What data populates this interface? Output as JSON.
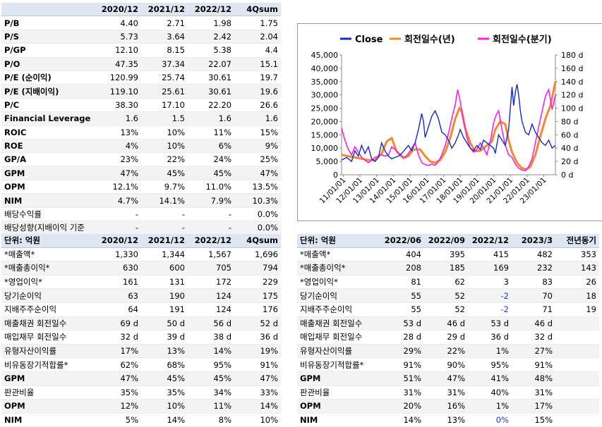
{
  "table1": {
    "headers": [
      "",
      "2020/12",
      "2021/12",
      "2022/12",
      "4Qsum"
    ],
    "rows": [
      {
        "label": "P/B",
        "values": [
          "4.40",
          "2.71",
          "1.98",
          "1.75"
        ]
      },
      {
        "label": "P/S",
        "values": [
          "5.73",
          "3.64",
          "2.42",
          "2.04"
        ]
      },
      {
        "label": "P/GP",
        "values": [
          "12.10",
          "8.15",
          "5.38",
          "4.4"
        ]
      },
      {
        "label": "P/O",
        "values": [
          "47.35",
          "37.34",
          "22.07",
          "15.1"
        ]
      },
      {
        "label": "P/E (순이익)",
        "values": [
          "120.99",
          "25.74",
          "30.61",
          "19.7"
        ]
      },
      {
        "label": "P/E (지배이익)",
        "values": [
          "119.10",
          "25.61",
          "30.61",
          "19.6"
        ]
      },
      {
        "label": "P/C",
        "values": [
          "38.30",
          "17.10",
          "22.20",
          "26.6"
        ]
      },
      {
        "label": "Financial Leverage",
        "values": [
          "1.6",
          "1.5",
          "1.6",
          "1.6"
        ]
      },
      {
        "label": "ROIC",
        "values": [
          "13%",
          "10%",
          "11%",
          "15%"
        ]
      },
      {
        "label": "ROE",
        "values": [
          "4%",
          "10%",
          "6%",
          "9%"
        ]
      },
      {
        "label": "GP/A",
        "values": [
          "23%",
          "22%",
          "24%",
          "25%"
        ]
      },
      {
        "label": "GPM",
        "values": [
          "47%",
          "45%",
          "45%",
          "47%"
        ]
      },
      {
        "label": "OPM",
        "values": [
          "12.1%",
          "9.7%",
          "11.0%",
          "13.5%"
        ]
      },
      {
        "label": "NIM",
        "values": [
          "4.7%",
          "14.1%",
          "7.9%",
          "10.3%"
        ]
      },
      {
        "label": "배당수익률",
        "values": [
          "-",
          "-",
          "-",
          "0.0%"
        ]
      },
      {
        "label": "배당성향(지배이익 기준",
        "values": [
          "-",
          "-",
          "-",
          "0.0%"
        ]
      }
    ]
  },
  "table2": {
    "headers": [
      "단위: 억원",
      "2020/12",
      "2021/12",
      "2022/12",
      "4Qsum"
    ],
    "rows": [
      {
        "label": "*매출액*",
        "values": [
          "1,330",
          "1,344",
          "1,567",
          "1,696"
        ]
      },
      {
        "label": "*매출총이익*",
        "values": [
          "630",
          "600",
          "705",
          "794"
        ]
      },
      {
        "label": "*영업이익*",
        "values": [
          "161",
          "131",
          "172",
          "229"
        ]
      },
      {
        "label": "당기순이익",
        "values": [
          "63",
          "190",
          "124",
          "175"
        ]
      },
      {
        "label": "지배주주순이익",
        "values": [
          "64",
          "191",
          "124",
          "176"
        ]
      },
      {
        "label": "매출채권 회전일수",
        "values": [
          "69 d",
          "50 d",
          "56 d",
          "52 d"
        ]
      },
      {
        "label": "매입채무 회전일수",
        "values": [
          "32 d",
          "39 d",
          "38 d",
          "36 d"
        ]
      },
      {
        "label": "유형자산이익률",
        "values": [
          "17%",
          "13%",
          "14%",
          "19%"
        ]
      },
      {
        "label": "비유동장기적합률*",
        "values": [
          "62%",
          "68%",
          "95%",
          "91%"
        ]
      },
      {
        "label": "GPM",
        "values": [
          "47%",
          "45%",
          "45%",
          "47%"
        ]
      },
      {
        "label": "판관비율",
        "values": [
          "35%",
          "35%",
          "34%",
          "33%"
        ]
      },
      {
        "label": "OPM",
        "values": [
          "12%",
          "10%",
          "11%",
          "14%"
        ]
      },
      {
        "label": "NIM",
        "values": [
          "5%",
          "14%",
          "8%",
          "10%"
        ]
      }
    ]
  },
  "table3": {
    "headers": [
      "단위: 억원",
      "2022/06",
      "2022/09",
      "2022/12",
      "2023/3",
      "전년동기"
    ],
    "rows": [
      {
        "label": "*매출액*",
        "values": [
          "404",
          "395",
          "415",
          "482",
          "353"
        ]
      },
      {
        "label": "*매출총이익*",
        "values": [
          "208",
          "185",
          "169",
          "232",
          "143"
        ]
      },
      {
        "label": "*영업이익*",
        "values": [
          "81",
          "62",
          "3",
          "83",
          "26"
        ]
      },
      {
        "label": "당기순이익",
        "values": [
          "55",
          "52",
          "-2",
          "70",
          "18"
        ]
      },
      {
        "label": "지배주주순이익",
        "values": [
          "55",
          "52",
          "-2",
          "71",
          "19"
        ]
      },
      {
        "label": "매출채권 회전일수",
        "values": [
          "53 d",
          "46 d",
          "53 d",
          "46 d",
          ""
        ]
      },
      {
        "label": "매입채무 회전일수",
        "values": [
          "28 d",
          "29 d",
          "36 d",
          "32 d",
          ""
        ]
      },
      {
        "label": "유형자산이익률",
        "values": [
          "29%",
          "22%",
          "1%",
          "27%",
          ""
        ]
      },
      {
        "label": "비유동장기적합률*",
        "values": [
          "91%",
          "90%",
          "95%",
          "91%",
          ""
        ]
      },
      {
        "label": "GPM",
        "values": [
          "51%",
          "47%",
          "41%",
          "48%",
          ""
        ]
      },
      {
        "label": "판관비율",
        "values": [
          "31%",
          "31%",
          "40%",
          "31%",
          ""
        ]
      },
      {
        "label": "OPM",
        "values": [
          "20%",
          "16%",
          "1%",
          "17%",
          ""
        ]
      },
      {
        "label": "NIM",
        "values": [
          "14%",
          "13%",
          "0%",
          "15%",
          ""
        ]
      }
    ]
  },
  "chart_data": {
    "type": "line",
    "legend": [
      "Close",
      "회전일수(년)",
      "회전일수(분기)"
    ],
    "legend_position": "top",
    "colors": {
      "close": "#1428d6",
      "annual": "#f08a2c",
      "quarterly": "#ff20e8"
    },
    "y_left": {
      "min": 0,
      "max": 45000,
      "ticks": [
        "0",
        "5,000",
        "10,000",
        "15,000",
        "20,000",
        "25,000",
        "30,000",
        "35,000",
        "40,000",
        "45,000"
      ]
    },
    "y_right": {
      "min": 0,
      "max": 180,
      "ticks": [
        "0 d",
        "20 d",
        "40 d",
        "60 d",
        "80 d",
        "100 d",
        "120 d",
        "140 d",
        "160 d",
        "180 d"
      ]
    },
    "x_ticks": [
      "11/01/01",
      "12/01/01",
      "13/01/01",
      "14/01/01",
      "15/01/01",
      "16/01/01",
      "17/01/01",
      "18/01/01",
      "19/01/01",
      "20/01/01",
      "21/01/01",
      "22/01/01",
      "23/01/01"
    ],
    "x_range": [
      2010.9,
      2023.7
    ],
    "close": [
      [
        2010.9,
        5500
      ],
      [
        2011.2,
        6500
      ],
      [
        2011.5,
        5000
      ],
      [
        2011.7,
        9000
      ],
      [
        2011.9,
        7000
      ],
      [
        2012.1,
        11000
      ],
      [
        2012.3,
        8000
      ],
      [
        2012.5,
        10500
      ],
      [
        2012.7,
        6000
      ],
      [
        2012.9,
        5000
      ],
      [
        2013.1,
        6500
      ],
      [
        2013.3,
        12000
      ],
      [
        2013.5,
        9000
      ],
      [
        2013.7,
        7000
      ],
      [
        2013.9,
        6000
      ],
      [
        2014.1,
        6500
      ],
      [
        2014.3,
        7000
      ],
      [
        2014.5,
        8000
      ],
      [
        2014.7,
        9500
      ],
      [
        2014.9,
        11000
      ],
      [
        2015.1,
        9000
      ],
      [
        2015.3,
        12000
      ],
      [
        2015.5,
        17000
      ],
      [
        2015.7,
        23000
      ],
      [
        2015.8,
        20000
      ],
      [
        2015.9,
        14000
      ],
      [
        2016.1,
        18000
      ],
      [
        2016.3,
        22000
      ],
      [
        2016.5,
        24000
      ],
      [
        2016.7,
        21000
      ],
      [
        2016.9,
        16000
      ],
      [
        2017.1,
        15000
      ],
      [
        2017.3,
        13000
      ],
      [
        2017.5,
        10000
      ],
      [
        2017.7,
        12000
      ],
      [
        2017.9,
        15000
      ],
      [
        2018.0,
        17000
      ],
      [
        2018.2,
        14000
      ],
      [
        2018.4,
        12000
      ],
      [
        2018.6,
        10000
      ],
      [
        2018.8,
        9000
      ],
      [
        2019.0,
        11000
      ],
      [
        2019.2,
        9500
      ],
      [
        2019.4,
        13000
      ],
      [
        2019.6,
        12000
      ],
      [
        2019.8,
        11000
      ],
      [
        2020.0,
        10000
      ],
      [
        2020.1,
        8000
      ],
      [
        2020.3,
        15000
      ],
      [
        2020.5,
        13000
      ],
      [
        2020.7,
        11000
      ],
      [
        2020.9,
        17000
      ],
      [
        2021.0,
        25000
      ],
      [
        2021.1,
        33000
      ],
      [
        2021.2,
        26000
      ],
      [
        2021.3,
        31000
      ],
      [
        2021.4,
        34000
      ],
      [
        2021.5,
        30000
      ],
      [
        2021.6,
        24000
      ],
      [
        2021.7,
        20000
      ],
      [
        2021.9,
        16000
      ],
      [
        2022.1,
        15000
      ],
      [
        2022.3,
        19000
      ],
      [
        2022.5,
        16000
      ],
      [
        2022.7,
        14000
      ],
      [
        2022.9,
        12000
      ],
      [
        2023.1,
        11000
      ],
      [
        2023.3,
        13000
      ],
      [
        2023.5,
        10000
      ],
      [
        2023.7,
        11000
      ]
    ],
    "annual": [
      [
        2010.9,
        30
      ],
      [
        2011.3,
        28
      ],
      [
        2011.7,
        26
      ],
      [
        2012.1,
        24
      ],
      [
        2012.5,
        22
      ],
      [
        2012.9,
        22
      ],
      [
        2013.3,
        32
      ],
      [
        2013.6,
        50
      ],
      [
        2013.9,
        55
      ],
      [
        2014.2,
        35
      ],
      [
        2014.6,
        25
      ],
      [
        2014.9,
        28
      ],
      [
        2015.2,
        38
      ],
      [
        2015.6,
        38
      ],
      [
        2015.9,
        28
      ],
      [
        2016.2,
        20
      ],
      [
        2016.5,
        18
      ],
      [
        2016.8,
        22
      ],
      [
        2017.1,
        34
      ],
      [
        2017.4,
        55
      ],
      [
        2017.7,
        84
      ],
      [
        2017.95,
        100
      ],
      [
        2018.1,
        95
      ],
      [
        2018.3,
        70
      ],
      [
        2018.6,
        48
      ],
      [
        2018.9,
        35
      ],
      [
        2019.2,
        36
      ],
      [
        2019.6,
        44
      ],
      [
        2019.9,
        50
      ],
      [
        2020.1,
        68
      ],
      [
        2020.4,
        80
      ],
      [
        2020.7,
        76
      ],
      [
        2020.9,
        52
      ],
      [
        2021.1,
        34
      ],
      [
        2021.4,
        18
      ],
      [
        2021.7,
        10
      ],
      [
        2021.95,
        8
      ],
      [
        2022.2,
        12
      ],
      [
        2022.5,
        30
      ],
      [
        2022.8,
        58
      ],
      [
        2023.1,
        84
      ],
      [
        2023.4,
        104
      ],
      [
        2023.7,
        140
      ]
    ],
    "quarterly": [
      [
        2010.9,
        70
      ],
      [
        2011.1,
        52
      ],
      [
        2011.3,
        38
      ],
      [
        2011.5,
        30
      ],
      [
        2011.7,
        42
      ],
      [
        2011.9,
        34
      ],
      [
        2012.1,
        26
      ],
      [
        2012.3,
        22
      ],
      [
        2012.5,
        18
      ],
      [
        2012.7,
        22
      ],
      [
        2012.9,
        26
      ],
      [
        2013.1,
        28
      ],
      [
        2013.3,
        30
      ],
      [
        2013.5,
        28
      ],
      [
        2013.7,
        30
      ],
      [
        2013.9,
        42
      ],
      [
        2014.1,
        38
      ],
      [
        2014.3,
        32
      ],
      [
        2014.5,
        28
      ],
      [
        2014.7,
        26
      ],
      [
        2014.9,
        32
      ],
      [
        2015.1,
        40
      ],
      [
        2015.3,
        48
      ],
      [
        2015.5,
        30
      ],
      [
        2015.7,
        18
      ],
      [
        2015.9,
        15
      ],
      [
        2016.1,
        14
      ],
      [
        2016.3,
        16
      ],
      [
        2016.5,
        14
      ],
      [
        2016.7,
        20
      ],
      [
        2016.9,
        30
      ],
      [
        2017.1,
        44
      ],
      [
        2017.3,
        62
      ],
      [
        2017.5,
        85
      ],
      [
        2017.7,
        105
      ],
      [
        2017.85,
        128
      ],
      [
        2018.0,
        110
      ],
      [
        2018.2,
        80
      ],
      [
        2018.4,
        56
      ],
      [
        2018.6,
        40
      ],
      [
        2018.8,
        34
      ],
      [
        2019.0,
        38
      ],
      [
        2019.2,
        48
      ],
      [
        2019.4,
        40
      ],
      [
        2019.6,
        30
      ],
      [
        2019.8,
        50
      ],
      [
        2020.0,
        78
      ],
      [
        2020.15,
        90
      ],
      [
        2020.3,
        96
      ],
      [
        2020.5,
        68
      ],
      [
        2020.7,
        44
      ],
      [
        2020.9,
        30
      ],
      [
        2021.1,
        26
      ],
      [
        2021.3,
        16
      ],
      [
        2021.5,
        10
      ],
      [
        2021.7,
        7
      ],
      [
        2021.9,
        6
      ],
      [
        2022.1,
        12
      ],
      [
        2022.3,
        24
      ],
      [
        2022.5,
        48
      ],
      [
        2022.7,
        72
      ],
      [
        2022.9,
        95
      ],
      [
        2023.1,
        118
      ],
      [
        2023.3,
        128
      ],
      [
        2023.5,
        98
      ],
      [
        2023.7,
        120
      ]
    ]
  }
}
